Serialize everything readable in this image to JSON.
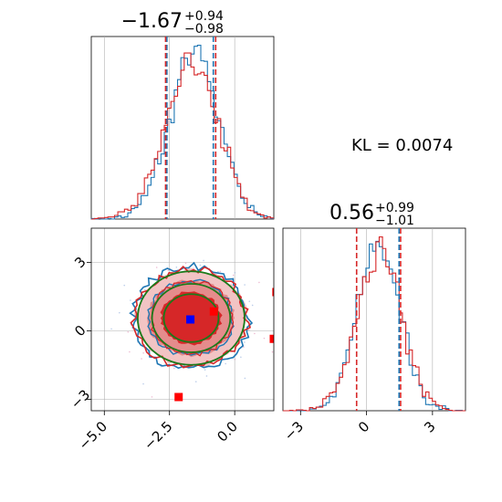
{
  "chart_data": {
    "type": "corner",
    "kl_label": "KL = 0.0074",
    "colors": {
      "blue": "#1f77b4",
      "red": "#d62728",
      "green": "#1a7a1a",
      "grid": "#b0b0b0"
    },
    "panels": [
      {
        "name": "param1-marginal",
        "type": "histogram",
        "xlim": [
          -5.5,
          1.5
        ],
        "title": {
          "main": "−1.67",
          "sup": "+0.94",
          "sub": "−0.98"
        },
        "red_quantile_lines": [
          -2.65,
          -0.73
        ],
        "blue_quantile_lines": [
          -2.6,
          -0.82
        ],
        "gridlines_x": [
          -5.0,
          -2.5,
          0.0
        ],
        "dist_blue": {
          "mean": -1.55,
          "std": 0.95
        },
        "dist_red": {
          "mean": -1.65,
          "std": 1.0
        }
      },
      {
        "name": "param2-marginal",
        "type": "histogram",
        "xlim": [
          -3.8,
          4.5
        ],
        "title": {
          "main": "0.56",
          "sup": "+0.99",
          "sub": "−1.01"
        },
        "xticks": [
          -3,
          0,
          3
        ],
        "red_quantile_lines": [
          -0.45,
          1.55
        ],
        "blue_quantile_lines": [
          1.48
        ],
        "gridlines_x": [
          -3,
          0,
          3
        ],
        "dist_blue": {
          "mean": 0.55,
          "std": 0.95
        },
        "dist_red": {
          "mean": 0.6,
          "std": 1.0
        }
      },
      {
        "name": "joint-2d",
        "type": "contour",
        "xlim": [
          -5.5,
          1.5
        ],
        "ylim": [
          -3.5,
          4.5
        ],
        "xticks": [
          -5.0,
          -2.5,
          0.0
        ],
        "yticks": [
          -3,
          0,
          3
        ],
        "center": [
          -1.67,
          0.56
        ],
        "blue_marker": [
          -1.7,
          0.5
        ],
        "red_markers": [
          [
            -0.8,
            0.85
          ],
          [
            1.6,
            1.7
          ],
          [
            1.5,
            -0.35
          ],
          [
            -2.15,
            -2.9
          ]
        ]
      }
    ]
  }
}
